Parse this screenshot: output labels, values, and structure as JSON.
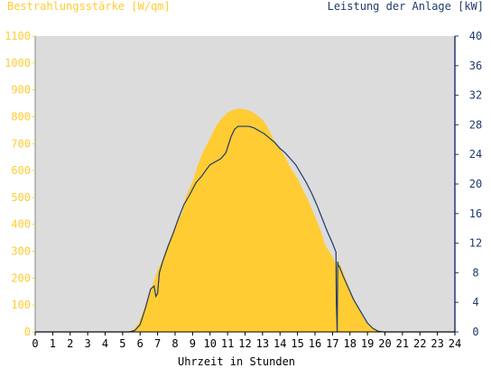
{
  "chart_data": {
    "type": "area",
    "left_axis_label": "Bestrahlungsstärke [W/qm]",
    "right_axis_label": "Leistung der Anlage [kW]",
    "xlabel": "Uhrzeit in Stunden",
    "xlim": [
      0,
      24
    ],
    "x_ticks": [
      "0",
      "1",
      "2",
      "3",
      "4",
      "5",
      "6",
      "7",
      "8",
      "9",
      "10",
      "11",
      "12",
      "13",
      "14",
      "15",
      "16",
      "17",
      "18",
      "19",
      "20",
      "21",
      "22",
      "23",
      "24"
    ],
    "ylim_left": [
      0,
      1100
    ],
    "ylim_right": [
      0,
      40
    ],
    "y_ticks_left": [
      "0",
      "100",
      "200",
      "300",
      "400",
      "500",
      "600",
      "700",
      "800",
      "900",
      "1000",
      "1100"
    ],
    "y_ticks_right": [
      "0",
      "4",
      "8",
      "12",
      "16",
      "20",
      "24",
      "28",
      "32",
      "36",
      "40"
    ],
    "grid": false,
    "colors": {
      "irradiance": "#ffcc33",
      "power": "#1f3a6e",
      "plot_bg": "#dcdcdc",
      "left_axis_text": "#ffcc33",
      "right_axis_text": "#1f3a6e"
    },
    "series": [
      {
        "name": "Bestrahlungsstärke [W/qm]",
        "axis": "left",
        "x": [
          0,
          5.3,
          5.6,
          5.9,
          6.2,
          6.5,
          6.8,
          7.0,
          7.2,
          7.5,
          7.8,
          8.1,
          8.4,
          8.6,
          9.0,
          9.3,
          9.6,
          10.0,
          10.3,
          10.6,
          11.0,
          11.3,
          11.6,
          12.0,
          12.3,
          12.6,
          13.0,
          13.3,
          13.6,
          14.0,
          14.3,
          14.6,
          15.0,
          15.3,
          15.6,
          16.0,
          16.3,
          16.6,
          17.0,
          17.2,
          17.3,
          17.4,
          17.5,
          17.8,
          18.1,
          18.4,
          18.7,
          19.0,
          19.3,
          19.6,
          19.9,
          20.1,
          24
        ],
        "y": [
          0,
          0,
          8,
          30,
          80,
          140,
          190,
          230,
          255,
          310,
          360,
          410,
          440,
          500,
          560,
          620,
          670,
          720,
          760,
          790,
          815,
          825,
          830,
          828,
          822,
          810,
          790,
          760,
          720,
          680,
          650,
          610,
          570,
          530,
          490,
          430,
          380,
          320,
          280,
          250,
          230,
          260,
          240,
          190,
          140,
          100,
          60,
          30,
          15,
          6,
          2,
          0,
          0
        ]
      },
      {
        "name": "Leistung der Anlage [kW]",
        "axis": "right",
        "x": [
          0,
          5.4,
          5.7,
          6.0,
          6.3,
          6.6,
          6.8,
          6.9,
          7.0,
          7.1,
          7.3,
          7.6,
          7.9,
          8.2,
          8.5,
          8.8,
          9.2,
          9.5,
          9.8,
          10.0,
          10.3,
          10.6,
          10.9,
          11.2,
          11.4,
          11.6,
          11.9,
          12.2,
          12.5,
          12.8,
          13.1,
          13.4,
          13.7,
          14.0,
          14.3,
          14.6,
          14.9,
          15.2,
          15.5,
          15.8,
          16.1,
          16.4,
          16.7,
          17.0,
          17.2,
          17.22,
          17.27,
          17.3,
          17.33,
          17.4,
          17.6,
          17.9,
          18.2,
          18.5,
          18.8,
          19.0,
          19.3,
          19.6,
          19.9,
          20.0,
          24
        ],
        "y": [
          0,
          0,
          0.2,
          1.0,
          3.2,
          5.8,
          6.2,
          4.8,
          5.2,
          8.0,
          9.6,
          11.6,
          13.4,
          15.4,
          17.2,
          18.4,
          20.2,
          21.0,
          22.0,
          22.6,
          23.0,
          23.4,
          24.2,
          26.4,
          27.4,
          27.8,
          27.8,
          27.8,
          27.6,
          27.2,
          26.8,
          26.2,
          25.6,
          24.8,
          24.2,
          23.4,
          22.6,
          21.4,
          20.2,
          18.8,
          17.2,
          15.4,
          13.6,
          12.0,
          10.8,
          4.0,
          0,
          9.5,
          9.0,
          8.8,
          7.6,
          6.0,
          4.4,
          3.2,
          2.0,
          1.2,
          0.5,
          0.1,
          0,
          0,
          0
        ]
      }
    ]
  }
}
